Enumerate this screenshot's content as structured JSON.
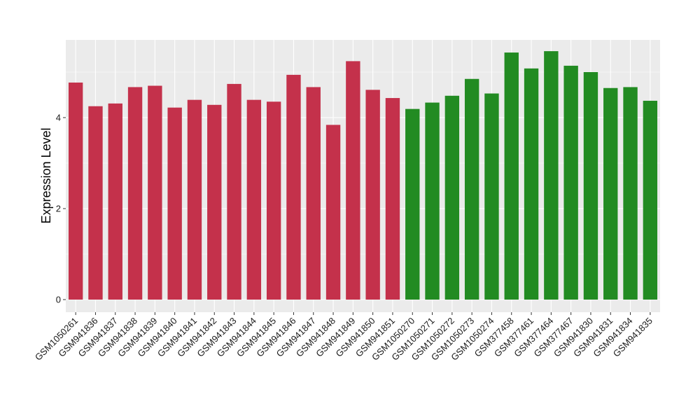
{
  "chart_data": {
    "type": "bar",
    "ylabel": "Expression Level",
    "xlabel": "",
    "ylim": [
      0,
      5.7
    ],
    "yticks": [
      0,
      2,
      4
    ],
    "grid": true,
    "categories": [
      "GSM1050261",
      "GSM941836",
      "GSM941837",
      "GSM941838",
      "GSM941839",
      "GSM941840",
      "GSM941841",
      "GSM941842",
      "GSM941843",
      "GSM941844",
      "GSM941845",
      "GSM941846",
      "GSM941847",
      "GSM941848",
      "GSM941849",
      "GSM941850",
      "GSM941851",
      "GSM1050270",
      "GSM1050271",
      "GSM1050272",
      "GSM1050273",
      "GSM1050274",
      "GSM377458",
      "GSM377461",
      "GSM377464",
      "GSM377467",
      "GSM941830",
      "GSM941831",
      "GSM941834",
      "GSM941835"
    ],
    "values": [
      4.77,
      4.25,
      4.31,
      4.67,
      4.7,
      4.22,
      4.39,
      4.28,
      4.74,
      4.39,
      4.35,
      4.94,
      4.67,
      3.84,
      5.24,
      4.61,
      4.43,
      4.19,
      4.33,
      4.48,
      4.85,
      4.53,
      5.43,
      5.08,
      5.46,
      5.14,
      5.0,
      4.65,
      4.67,
      4.37
    ],
    "bar_colors": [
      "#c4314b",
      "#c4314b",
      "#c4314b",
      "#c4314b",
      "#c4314b",
      "#c4314b",
      "#c4314b",
      "#c4314b",
      "#c4314b",
      "#c4314b",
      "#c4314b",
      "#c4314b",
      "#c4314b",
      "#c4314b",
      "#c4314b",
      "#c4314b",
      "#c4314b",
      "#228b22",
      "#228b22",
      "#228b22",
      "#228b22",
      "#228b22",
      "#228b22",
      "#228b22",
      "#228b22",
      "#228b22",
      "#228b22",
      "#228b22",
      "#228b22",
      "#228b22"
    ],
    "panel_background": "#ebebeb",
    "grid_color": "#ffffff"
  }
}
